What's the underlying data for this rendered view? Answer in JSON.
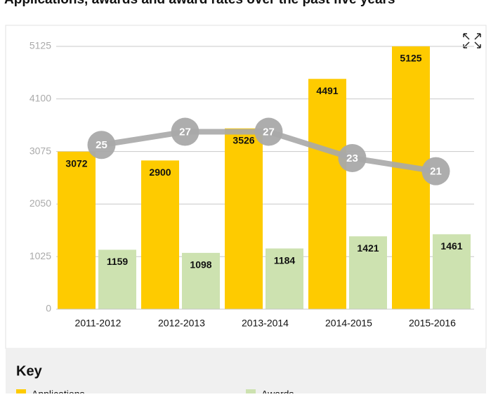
{
  "key_title": "Key",
  "chart_data": {
    "type": "bar",
    "title": "Applications, awards and award rates over the past five years",
    "categories": [
      "2011-2012",
      "2012-2013",
      "2013-2014",
      "2014-2015",
      "2015-2016"
    ],
    "series": [
      {
        "name": "Applications",
        "color": "#fecb00",
        "values": [
          3072,
          2900,
          3526,
          4491,
          5125
        ]
      },
      {
        "name": "Awards",
        "color": "#cde2b0",
        "values": [
          1159,
          1098,
          1184,
          1421,
          1461
        ]
      },
      {
        "type": "line",
        "axis": "y2",
        "color": "#a9a9a9",
        "values": [
          25,
          27,
          27,
          23,
          21
        ]
      }
    ],
    "ylim": [
      0,
      5125
    ],
    "yticks": [
      0,
      1025,
      2050,
      3075,
      4100,
      5125
    ],
    "y2lim": [
      0,
      40
    ],
    "grid": true
  }
}
